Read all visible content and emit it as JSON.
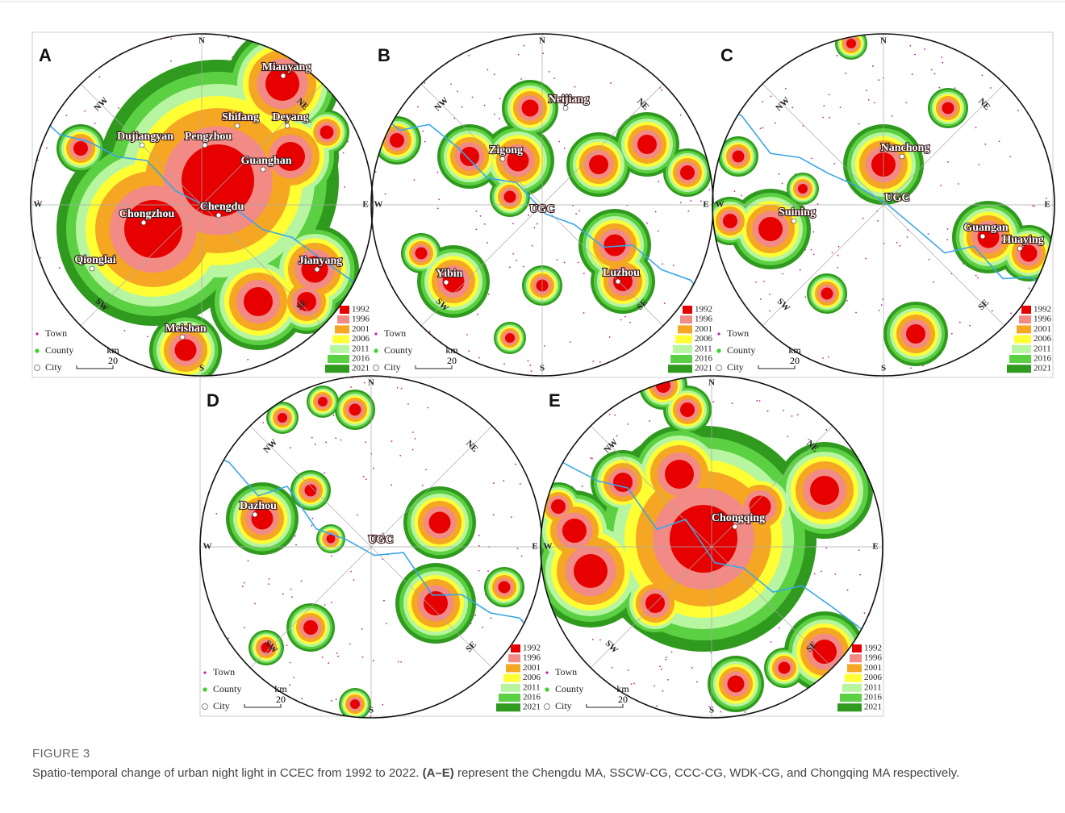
{
  "figure": {
    "label": "FIGURE 3",
    "caption": {
      "before": "Spatio-temporal change of urban night light in CCEC from 1992 to 2022. ",
      "bold": "(A–E)",
      "after": " represent the Chengdu MA, SSCW-CG, CCC-CG, WDK-CG, and Chongqing MA respectively."
    },
    "compass": [
      "N",
      "NE",
      "E",
      "SE",
      "S",
      "SW",
      "W",
      "NW"
    ],
    "legend": {
      "years": [
        "1992",
        "1996",
        "2001",
        "2006",
        "2011",
        "2016",
        "2021"
      ],
      "symbols": [
        "Town",
        "County",
        "City"
      ],
      "scale_unit": "km",
      "scale_value": "20"
    },
    "panels": [
      {
        "letter": "A",
        "places": [
          "Mianyang",
          "Shifang",
          "Deyang",
          "Dujiangyan",
          "Pengzhou",
          "Guanghan",
          "Chengdu",
          "Chongzhou",
          "Qionglai",
          "Jianyang",
          "Meishan"
        ]
      },
      {
        "letter": "B",
        "places": [
          "Neijiang",
          "Zigong",
          "UGC",
          "Luzhou",
          "Yibin"
        ]
      },
      {
        "letter": "C",
        "places": [
          "Nanchong",
          "UGC",
          "Suining",
          "Guangan",
          "Huaying"
        ]
      },
      {
        "letter": "D",
        "places": [
          "Dazhou",
          "UGC"
        ]
      },
      {
        "letter": "E",
        "places": [
          "Chongqing"
        ]
      }
    ]
  }
}
